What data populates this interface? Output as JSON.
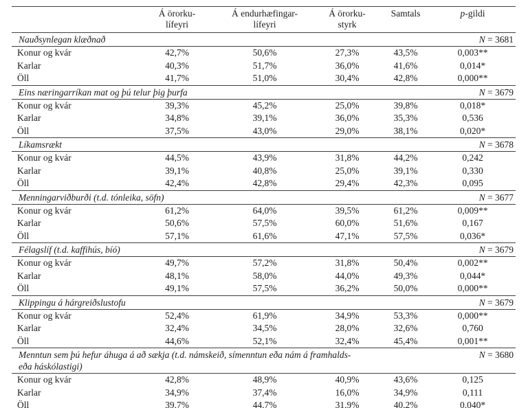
{
  "header": {
    "col1": [
      "Á örorku-",
      "lífeyri"
    ],
    "col2": [
      "Á endurhæfingar-",
      "lífeyri"
    ],
    "col3": [
      "Á örorku-",
      "styrk"
    ],
    "col4": "Samtals",
    "p_sym": "p",
    "p_rest": "-gildi"
  },
  "sections": [
    {
      "title": "Nauðsynlegan klæðnað",
      "n_sym": "N",
      "n_rest": " = 3681",
      "rows": [
        {
          "label": "Konur og kvár",
          "values": [
            "42,7%",
            "50,6%",
            "27,3%",
            "43,5%",
            "0,003**"
          ]
        },
        {
          "label": "Karlar",
          "values": [
            "40,3%",
            "51,7%",
            "36,0%",
            "41,6%",
            "0,014*"
          ]
        },
        {
          "label": "Öll",
          "values": [
            "41,7%",
            "51,0%",
            "30,4%",
            "42,8%",
            "0,000**"
          ]
        }
      ]
    },
    {
      "title": "Eins næringarríkan mat og þú telur þig þurfa",
      "n_sym": "N",
      "n_rest": " = 3679",
      "rows": [
        {
          "label": "Konur og kvár",
          "values": [
            "39,3%",
            "45,2%",
            "25,0%",
            "39,8%",
            "0,018*"
          ]
        },
        {
          "label": "Karlar",
          "values": [
            "34,8%",
            "39,1%",
            "36,0%",
            "35,3%",
            "0,536"
          ]
        },
        {
          "label": "Öll",
          "values": [
            "37,5%",
            "43,0%",
            "29,0%",
            "38,1%",
            "0,020*"
          ]
        }
      ]
    },
    {
      "title": "Líkamsrækt",
      "n_sym": "N",
      "n_rest": " = 3678",
      "rows": [
        {
          "label": "Konur og kvár",
          "values": [
            "44,5%",
            "43,9%",
            "31,8%",
            "44,2%",
            "0,242"
          ]
        },
        {
          "label": "Karlar",
          "values": [
            "39,1%",
            "40,8%",
            "25,0%",
            "39,1%",
            "0,330"
          ]
        },
        {
          "label": "Öll",
          "values": [
            "42,4%",
            "42,8%",
            "29,4%",
            "42,3%",
            "0,095"
          ]
        }
      ]
    },
    {
      "title": "Menningarviðburði (t.d. tónleika, söfn)",
      "n_sym": "N",
      "n_rest": " = 3677",
      "rows": [
        {
          "label": "Konur og kvár",
          "values": [
            "61,2%",
            "64,0%",
            "39,5%",
            "61,2%",
            "0,009**"
          ]
        },
        {
          "label": "Karlar",
          "values": [
            "50,6%",
            "57,5%",
            "60,0%",
            "51,6%",
            "0,167"
          ]
        },
        {
          "label": "Öll",
          "values": [
            "57,1%",
            "61,6%",
            "47,1%",
            "57,5%",
            "0,036*"
          ]
        }
      ]
    },
    {
      "title": "Félagslíf (t.d. kaffihús, bíó)",
      "n_sym": "N",
      "n_rest": " = 3679",
      "rows": [
        {
          "label": "Konur og kvár",
          "values": [
            "49,7%",
            "57,2%",
            "31,8%",
            "50,4%",
            "0,002**"
          ]
        },
        {
          "label": "Karlar",
          "values": [
            "48,1%",
            "58,0%",
            "44,0%",
            "49,3%",
            "0,044*"
          ]
        },
        {
          "label": "Öll",
          "values": [
            "49,1%",
            "57,5%",
            "36,2%",
            "50,0%",
            "0,000**"
          ]
        }
      ]
    },
    {
      "title": "Klippingu á hárgreiðslustofu",
      "n_sym": "N",
      "n_rest": " = 3679",
      "rows": [
        {
          "label": "Konur og kvár",
          "values": [
            "52,4%",
            "61,9%",
            "34,9%",
            "53,3%",
            "0,000**"
          ]
        },
        {
          "label": "Karlar",
          "values": [
            "32,4%",
            "34,5%",
            "28,0%",
            "32,6%",
            "0,760"
          ]
        },
        {
          "label": "Öll",
          "values": [
            "44,6%",
            "52,1%",
            "32,4%",
            "45,4%",
            "0,001**"
          ]
        }
      ]
    },
    {
      "title": "Menntun sem þú hefur áhuga á að sækja (t.d. námskeið, símenntun eða nám á framhalds-",
      "title2": "eða háskólastigi)",
      "n_sym": "N",
      "n_rest": " = 3680",
      "rows": [
        {
          "label": "Konur og kvár",
          "values": [
            "42,8%",
            "48,9%",
            "40,9%",
            "43,6%",
            "0,125"
          ]
        },
        {
          "label": "Karlar",
          "values": [
            "34,9%",
            "37,4%",
            "16,0%",
            "34,9%",
            "0,111"
          ]
        },
        {
          "label": "Öll",
          "values": [
            "39,7%",
            "44,7%",
            "31,9%",
            "40,2%",
            "0,040*"
          ]
        }
      ]
    }
  ]
}
